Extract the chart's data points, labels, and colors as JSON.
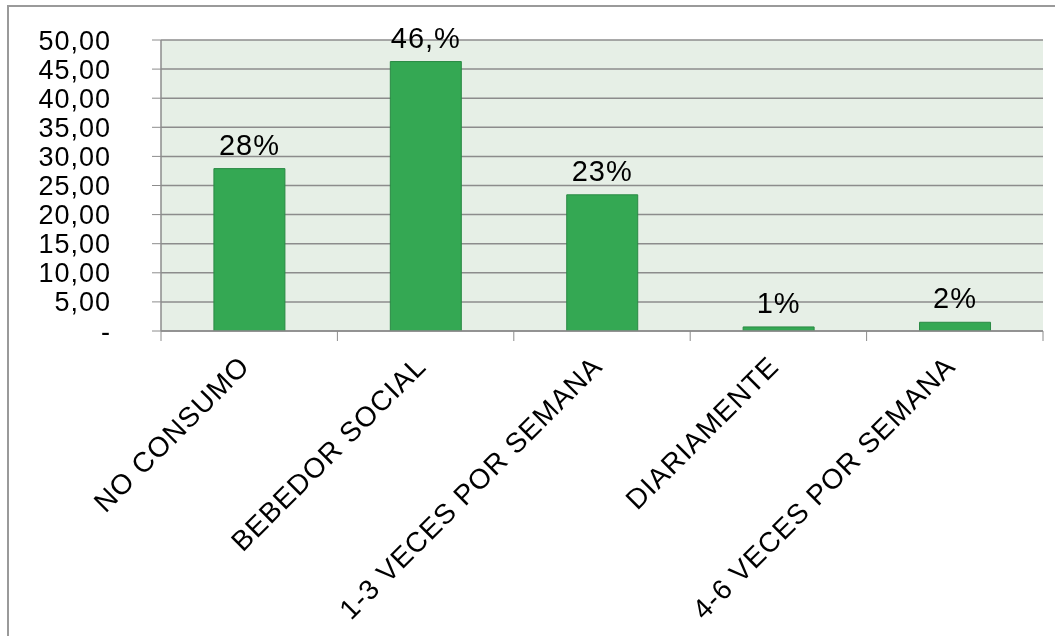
{
  "chart_data": {
    "type": "bar",
    "categories": [
      "NO CONSUMO",
      "BEBEDOR SOCIAL",
      "1-3 VECES POR SEMANA",
      "DIARIAMENTE",
      "4-6 VECES POR SEMANA"
    ],
    "values": [
      27.9,
      46.3,
      23.4,
      0.7,
      1.5
    ],
    "color": "#34a853",
    "value_labels": [
      "28%",
      "46,%",
      "23%",
      "1%",
      "2%"
    ],
    "ylim": [
      0,
      50
    ],
    "yticks": [
      {
        "value": 0,
        "label": "-"
      },
      {
        "value": 5,
        "label": "5,00"
      },
      {
        "value": 10,
        "label": "10,00"
      },
      {
        "value": 15,
        "label": "15,00"
      },
      {
        "value": 20,
        "label": "20,00"
      },
      {
        "value": 25,
        "label": "25,00"
      },
      {
        "value": 30,
        "label": "30,00"
      },
      {
        "value": 35,
        "label": "35,00"
      },
      {
        "value": 40,
        "label": "40,00"
      },
      {
        "value": 45,
        "label": "45,00"
      },
      {
        "value": 50,
        "label": "50,00"
      }
    ],
    "grid": "y"
  }
}
